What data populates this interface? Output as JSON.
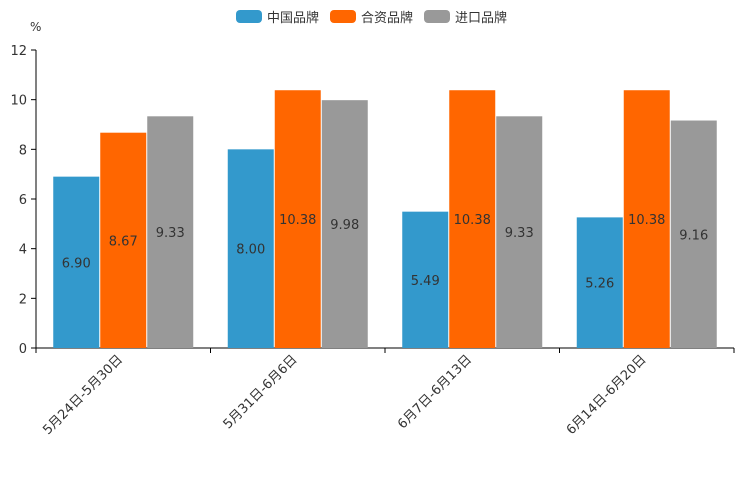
{
  "chart_data": {
    "type": "bar",
    "unit": "%",
    "categories": [
      "5月24日-5月30日",
      "5月31日-6月6日",
      "6月7日-6月13日",
      "6月14日-6月20日"
    ],
    "series": [
      {
        "name": "中国品牌",
        "values": [
          6.9,
          8.0,
          5.49,
          5.26
        ],
        "labels": [
          "6.90",
          "8.00",
          "5.49",
          "5.26"
        ],
        "color": "#3399cc"
      },
      {
        "name": "合资品牌",
        "values": [
          8.67,
          10.38,
          10.38,
          10.38
        ],
        "labels": [
          "8.67",
          "10.38",
          "10.38",
          "10.38"
        ],
        "color": "#ff6600"
      },
      {
        "name": "进口品牌",
        "values": [
          9.33,
          9.98,
          9.33,
          9.16
        ],
        "labels": [
          "9.33",
          "9.98",
          "9.33",
          "9.16"
        ],
        "color": "#999999"
      }
    ],
    "ylim": [
      0,
      12
    ],
    "yticks": [
      "0",
      "2",
      "4",
      "6",
      "8",
      "10",
      "12"
    ],
    "legend_position": "top-center",
    "grid": false
  }
}
